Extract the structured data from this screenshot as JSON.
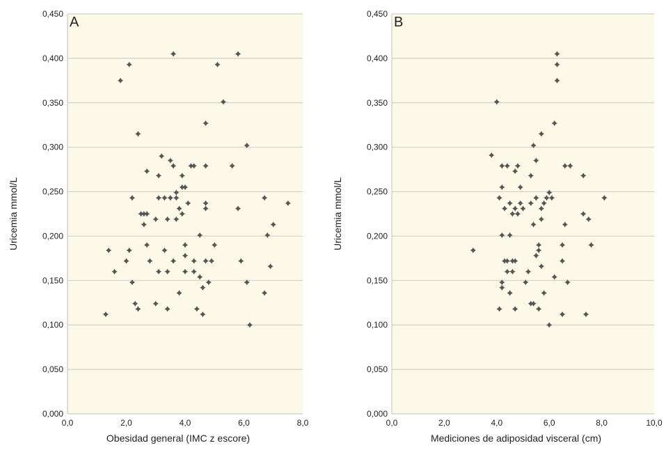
{
  "chart_data": [
    {
      "type": "scatter",
      "panel_label": "A",
      "xlabel": "Obesidad general (IMC z escore)",
      "ylabel": "Uricemia mmol/L",
      "xlim": [
        0,
        8
      ],
      "ylim": [
        0,
        0.45
      ],
      "x_ticks": [
        "0,0",
        "2,0",
        "4,0",
        "6,0",
        "8,0"
      ],
      "y_ticks": [
        "0,000",
        "0,050",
        "0,100",
        "0,150",
        "0,200",
        "0,250",
        "0,300",
        "0,350",
        "0,400",
        "0,450"
      ],
      "grid": "horizontal",
      "background": "#fcf9e8",
      "marker_color": "#555555",
      "points": [
        {
          "x": 1.3,
          "y": 0.112
        },
        {
          "x": 1.4,
          "y": 0.184
        },
        {
          "x": 1.6,
          "y": 0.16
        },
        {
          "x": 1.8,
          "y": 0.375
        },
        {
          "x": 2.0,
          "y": 0.172
        },
        {
          "x": 2.1,
          "y": 0.184
        },
        {
          "x": 2.1,
          "y": 0.393
        },
        {
          "x": 2.2,
          "y": 0.148
        },
        {
          "x": 2.2,
          "y": 0.243
        },
        {
          "x": 2.3,
          "y": 0.124
        },
        {
          "x": 2.4,
          "y": 0.315
        },
        {
          "x": 2.4,
          "y": 0.118
        },
        {
          "x": 2.5,
          "y": 0.225
        },
        {
          "x": 2.6,
          "y": 0.213
        },
        {
          "x": 2.6,
          "y": 0.225
        },
        {
          "x": 2.7,
          "y": 0.19
        },
        {
          "x": 2.7,
          "y": 0.225
        },
        {
          "x": 2.7,
          "y": 0.273
        },
        {
          "x": 2.8,
          "y": 0.172
        },
        {
          "x": 3.0,
          "y": 0.219
        },
        {
          "x": 3.0,
          "y": 0.124
        },
        {
          "x": 3.1,
          "y": 0.16
        },
        {
          "x": 3.1,
          "y": 0.243
        },
        {
          "x": 3.1,
          "y": 0.268
        },
        {
          "x": 3.2,
          "y": 0.29
        },
        {
          "x": 3.3,
          "y": 0.184
        },
        {
          "x": 3.3,
          "y": 0.243
        },
        {
          "x": 3.4,
          "y": 0.16
        },
        {
          "x": 3.4,
          "y": 0.118
        },
        {
          "x": 3.4,
          "y": 0.219
        },
        {
          "x": 3.5,
          "y": 0.243
        },
        {
          "x": 3.5,
          "y": 0.285
        },
        {
          "x": 3.6,
          "y": 0.172
        },
        {
          "x": 3.6,
          "y": 0.279
        },
        {
          "x": 3.6,
          "y": 0.405
        },
        {
          "x": 3.7,
          "y": 0.219
        },
        {
          "x": 3.7,
          "y": 0.243
        },
        {
          "x": 3.7,
          "y": 0.249
        },
        {
          "x": 3.8,
          "y": 0.136
        },
        {
          "x": 3.8,
          "y": 0.231
        },
        {
          "x": 3.9,
          "y": 0.225
        },
        {
          "x": 3.9,
          "y": 0.268
        },
        {
          "x": 3.9,
          "y": 0.255
        },
        {
          "x": 4.0,
          "y": 0.19
        },
        {
          "x": 4.0,
          "y": 0.178
        },
        {
          "x": 4.0,
          "y": 0.16
        },
        {
          "x": 4.0,
          "y": 0.255
        },
        {
          "x": 4.1,
          "y": 0.237
        },
        {
          "x": 4.2,
          "y": 0.279
        },
        {
          "x": 4.3,
          "y": 0.279
        },
        {
          "x": 4.3,
          "y": 0.16
        },
        {
          "x": 4.3,
          "y": 0.172
        },
        {
          "x": 4.4,
          "y": 0.118
        },
        {
          "x": 4.5,
          "y": 0.154
        },
        {
          "x": 4.5,
          "y": 0.201
        },
        {
          "x": 4.6,
          "y": 0.112
        },
        {
          "x": 4.6,
          "y": 0.142
        },
        {
          "x": 4.7,
          "y": 0.172
        },
        {
          "x": 4.7,
          "y": 0.231
        },
        {
          "x": 4.7,
          "y": 0.237
        },
        {
          "x": 4.7,
          "y": 0.279
        },
        {
          "x": 4.7,
          "y": 0.327
        },
        {
          "x": 4.8,
          "y": 0.148
        },
        {
          "x": 4.9,
          "y": 0.172
        },
        {
          "x": 5.0,
          "y": 0.19
        },
        {
          "x": 5.1,
          "y": 0.393
        },
        {
          "x": 5.3,
          "y": 0.351
        },
        {
          "x": 5.6,
          "y": 0.279
        },
        {
          "x": 5.8,
          "y": 0.231
        },
        {
          "x": 5.8,
          "y": 0.405
        },
        {
          "x": 5.9,
          "y": 0.172
        },
        {
          "x": 6.1,
          "y": 0.148
        },
        {
          "x": 6.1,
          "y": 0.302
        },
        {
          "x": 6.2,
          "y": 0.1
        },
        {
          "x": 6.7,
          "y": 0.136
        },
        {
          "x": 6.7,
          "y": 0.243
        },
        {
          "x": 6.8,
          "y": 0.201
        },
        {
          "x": 6.9,
          "y": 0.166
        },
        {
          "x": 7.0,
          "y": 0.213
        },
        {
          "x": 7.5,
          "y": 0.237
        }
      ]
    },
    {
      "type": "scatter",
      "panel_label": "B",
      "xlabel": "Mediciones de adiposidad visceral (cm)",
      "ylabel": "Uricemia mmol/L",
      "xlim": [
        0,
        10
      ],
      "ylim": [
        0,
        0.45
      ],
      "x_ticks": [
        "0,0",
        "2,0",
        "4,0",
        "6,0",
        "8,0",
        "10,0"
      ],
      "y_ticks": [
        "0,000",
        "0,050",
        "0,100",
        "0,150",
        "0,200",
        "0,250",
        "0,300",
        "0,350",
        "0,400",
        "0,450"
      ],
      "grid": "horizontal",
      "background": "#fcf9e8",
      "marker_color": "#555555",
      "points": [
        {
          "x": 3.1,
          "y": 0.184
        },
        {
          "x": 3.8,
          "y": 0.291
        },
        {
          "x": 4.0,
          "y": 0.351
        },
        {
          "x": 4.1,
          "y": 0.118
        },
        {
          "x": 4.1,
          "y": 0.243
        },
        {
          "x": 4.2,
          "y": 0.142
        },
        {
          "x": 4.2,
          "y": 0.148
        },
        {
          "x": 4.2,
          "y": 0.201
        },
        {
          "x": 4.2,
          "y": 0.255
        },
        {
          "x": 4.2,
          "y": 0.279
        },
        {
          "x": 4.3,
          "y": 0.172
        },
        {
          "x": 4.3,
          "y": 0.231
        },
        {
          "x": 4.4,
          "y": 0.16
        },
        {
          "x": 4.4,
          "y": 0.172
        },
        {
          "x": 4.4,
          "y": 0.279
        },
        {
          "x": 4.5,
          "y": 0.136
        },
        {
          "x": 4.5,
          "y": 0.201
        },
        {
          "x": 4.5,
          "y": 0.237
        },
        {
          "x": 4.6,
          "y": 0.16
        },
        {
          "x": 4.6,
          "y": 0.172
        },
        {
          "x": 4.6,
          "y": 0.225
        },
        {
          "x": 4.7,
          "y": 0.118
        },
        {
          "x": 4.7,
          "y": 0.172
        },
        {
          "x": 4.7,
          "y": 0.231
        },
        {
          "x": 4.7,
          "y": 0.273
        },
        {
          "x": 4.8,
          "y": 0.225
        },
        {
          "x": 4.8,
          "y": 0.279
        },
        {
          "x": 4.9,
          "y": 0.237
        },
        {
          "x": 4.9,
          "y": 0.255
        },
        {
          "x": 5.0,
          "y": 0.231
        },
        {
          "x": 5.1,
          "y": 0.148
        },
        {
          "x": 5.2,
          "y": 0.16
        },
        {
          "x": 5.3,
          "y": 0.124
        },
        {
          "x": 5.3,
          "y": 0.237
        },
        {
          "x": 5.3,
          "y": 0.268
        },
        {
          "x": 5.4,
          "y": 0.213
        },
        {
          "x": 5.4,
          "y": 0.302
        },
        {
          "x": 5.4,
          "y": 0.124
        },
        {
          "x": 5.5,
          "y": 0.178
        },
        {
          "x": 5.5,
          "y": 0.243
        },
        {
          "x": 5.5,
          "y": 0.285
        },
        {
          "x": 5.6,
          "y": 0.19
        },
        {
          "x": 5.6,
          "y": 0.184
        },
        {
          "x": 5.6,
          "y": 0.118
        },
        {
          "x": 5.7,
          "y": 0.219
        },
        {
          "x": 5.7,
          "y": 0.231
        },
        {
          "x": 5.7,
          "y": 0.166
        },
        {
          "x": 5.7,
          "y": 0.315
        },
        {
          "x": 5.8,
          "y": 0.136
        },
        {
          "x": 5.8,
          "y": 0.237
        },
        {
          "x": 5.9,
          "y": 0.243
        },
        {
          "x": 6.0,
          "y": 0.1
        },
        {
          "x": 6.0,
          "y": 0.249
        },
        {
          "x": 6.1,
          "y": 0.243
        },
        {
          "x": 6.2,
          "y": 0.154
        },
        {
          "x": 6.2,
          "y": 0.327
        },
        {
          "x": 6.3,
          "y": 0.375
        },
        {
          "x": 6.3,
          "y": 0.393
        },
        {
          "x": 6.3,
          "y": 0.405
        },
        {
          "x": 6.5,
          "y": 0.112
        },
        {
          "x": 6.5,
          "y": 0.172
        },
        {
          "x": 6.5,
          "y": 0.19
        },
        {
          "x": 6.6,
          "y": 0.213
        },
        {
          "x": 6.6,
          "y": 0.279
        },
        {
          "x": 6.7,
          "y": 0.148
        },
        {
          "x": 6.8,
          "y": 0.279
        },
        {
          "x": 7.3,
          "y": 0.268
        },
        {
          "x": 7.3,
          "y": 0.225
        },
        {
          "x": 7.4,
          "y": 0.112
        },
        {
          "x": 7.5,
          "y": 0.219
        },
        {
          "x": 7.6,
          "y": 0.19
        },
        {
          "x": 8.1,
          "y": 0.243
        }
      ]
    }
  ]
}
